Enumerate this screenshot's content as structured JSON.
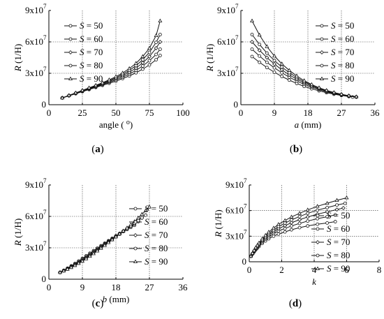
{
  "chart_data": [
    {
      "type": "line",
      "panel_label": "(a)",
      "xlabel": "angle (",
      "xlabel_sup": "o",
      "xlabel_close": ")",
      "xlabel_italic": "",
      "xlabel_unit": "",
      "ylabel": "R (1/H)",
      "xlim": [
        0,
        100
      ],
      "ylim": [
        0,
        90000000
      ],
      "xticks": [
        0,
        25,
        50,
        75,
        100
      ],
      "xtick_labels": [
        "0",
        "25",
        "50",
        "75",
        "100"
      ],
      "yticks": [
        0,
        30000000,
        60000000,
        90000000
      ],
      "ytick_labels": [
        "0",
        "3x10",
        "6x10",
        "9x10"
      ],
      "ytick_exp": [
        "",
        "7",
        "7",
        "7"
      ],
      "grid": true,
      "legend_position": "top-left",
      "series": [
        {
          "name": "S = 50",
          "x": [
            10,
            15,
            20,
            25,
            30,
            35,
            40,
            45,
            50,
            55,
            60,
            65,
            70,
            75,
            80,
            83
          ],
          "y": [
            6500000,
            8500000,
            10500000,
            12500000,
            14500000,
            16500000,
            18500000,
            20500000,
            22500000,
            25000000,
            27500000,
            30500000,
            34000000,
            38000000,
            43000000,
            47000000
          ]
        },
        {
          "name": "S = 60",
          "x": [
            10,
            15,
            20,
            25,
            30,
            35,
            40,
            45,
            50,
            55,
            60,
            65,
            70,
            75,
            80,
            83
          ],
          "y": [
            6500000,
            8600000,
            10700000,
            12800000,
            14900000,
            17000000,
            19200000,
            21400000,
            23700000,
            26300000,
            29300000,
            32800000,
            37000000,
            42000000,
            48000000,
            53000000
          ]
        },
        {
          "name": "S = 70",
          "x": [
            10,
            15,
            20,
            25,
            30,
            35,
            40,
            45,
            50,
            55,
            60,
            65,
            70,
            75,
            80,
            83
          ],
          "y": [
            6500000,
            8700000,
            10900000,
            13100000,
            15300000,
            17500000,
            19800000,
            22200000,
            24800000,
            27700000,
            31000000,
            35000000,
            40000000,
            46000000,
            54000000,
            60000000
          ]
        },
        {
          "name": "S = 80",
          "x": [
            10,
            15,
            20,
            25,
            30,
            35,
            40,
            45,
            50,
            55,
            60,
            65,
            70,
            75,
            80,
            83
          ],
          "y": [
            6500000,
            8800000,
            11100000,
            13400000,
            15700000,
            18000000,
            20400000,
            23000000,
            25800000,
            29000000,
            32800000,
            37300000,
            43000000,
            50000000,
            59500000,
            67000000
          ]
        },
        {
          "name": "S = 90",
          "x": [
            10,
            15,
            20,
            25,
            30,
            35,
            40,
            45,
            50,
            55,
            60,
            65,
            70,
            75,
            80,
            83
          ],
          "y": [
            6500000,
            8900000,
            11300000,
            13700000,
            16100000,
            18500000,
            21000000,
            23800000,
            26800000,
            30300000,
            34500000,
            39500000,
            46000000,
            54000000,
            66000000,
            80000000
          ]
        }
      ]
    },
    {
      "type": "line",
      "panel_label": "(b)",
      "xlabel": "",
      "xlabel_sup": "",
      "xlabel_close": "",
      "xlabel_italic": "a",
      "xlabel_unit": " (mm)",
      "ylabel": "R (1/H)",
      "xlim": [
        0,
        36
      ],
      "ylim": [
        0,
        90000000
      ],
      "xticks": [
        0,
        9,
        18,
        27,
        36
      ],
      "xtick_labels": [
        "0",
        "9",
        "18",
        "27",
        "36"
      ],
      "yticks": [
        0,
        30000000,
        60000000,
        90000000
      ],
      "ytick_labels": [
        "0",
        "3x10",
        "6x10",
        "9x10"
      ],
      "ytick_exp": [
        "",
        "7",
        "7",
        "7"
      ],
      "grid": true,
      "legend_position": "top-right",
      "series": [
        {
          "name": "S = 50",
          "x": [
            3,
            5,
            7,
            9,
            11,
            13,
            15,
            17,
            19,
            21,
            23,
            25,
            27,
            29,
            30
          ],
          "y": [
            46000000,
            40500000,
            35500000,
            31000000,
            27000000,
            23500000,
            20300000,
            17500000,
            15200000,
            13200000,
            11500000,
            10000000,
            8800000,
            7800000,
            7300000
          ]
        },
        {
          "name": "S = 60",
          "x": [
            3,
            5,
            7,
            9,
            11,
            13,
            15,
            17,
            19,
            21,
            23,
            25,
            27,
            29,
            31
          ],
          "y": [
            53000000,
            46500000,
            40500000,
            35200000,
            30500000,
            26300000,
            22600000,
            19400000,
            16700000,
            14300000,
            12300000,
            10700000,
            9300000,
            8200000,
            7300000
          ]
        },
        {
          "name": "S = 70",
          "x": [
            3,
            5,
            7,
            9,
            11,
            13,
            15,
            17,
            19,
            21,
            23,
            25,
            27,
            29,
            31
          ],
          "y": [
            60000000,
            52000000,
            45000000,
            38800000,
            33300000,
            28500000,
            24400000,
            20800000,
            17700000,
            15100000,
            12900000,
            11100000,
            9600000,
            8400000,
            7400000
          ]
        },
        {
          "name": "S = 80",
          "x": [
            3,
            5,
            7,
            9,
            11,
            13,
            15,
            17,
            19,
            21,
            23,
            25,
            27,
            29,
            31
          ],
          "y": [
            67000000,
            57500000,
            49300000,
            42200000,
            36000000,
            30600000,
            26000000,
            22000000,
            18600000,
            15800000,
            13400000,
            11400000,
            9800000,
            8500000,
            7500000
          ]
        },
        {
          "name": "S = 90",
          "x": [
            3,
            5,
            7,
            9,
            11,
            13,
            15,
            17,
            19,
            21,
            23,
            25,
            27,
            29,
            31
          ],
          "y": [
            80000000,
            66500000,
            55500000,
            46500000,
            39000000,
            32800000,
            27500000,
            23000000,
            19300000,
            16200000,
            13700000,
            11700000,
            10000000,
            8600000,
            7600000
          ]
        }
      ]
    },
    {
      "type": "line",
      "panel_label": "(c)",
      "xlabel": "",
      "xlabel_sup": "",
      "xlabel_close": "",
      "xlabel_italic": "b",
      "xlabel_unit": " (mm)",
      "ylabel": "R (1/H)",
      "xlim": [
        0,
        36
      ],
      "ylim": [
        0,
        90000000
      ],
      "xticks": [
        0,
        9,
        18,
        27,
        36
      ],
      "xtick_labels": [
        "0",
        "9",
        "18",
        "27",
        "36"
      ],
      "yticks": [
        0,
        30000000,
        60000000,
        90000000
      ],
      "ytick_labels": [
        "0",
        "3x10",
        "6x10",
        "9x10"
      ],
      "ytick_exp": [
        "",
        "7",
        "7",
        "7"
      ],
      "grid": true,
      "legend_position": "bottom-right",
      "series": [
        {
          "name": "S = 50",
          "x": [
            3,
            4,
            5,
            6,
            7,
            8,
            9,
            10,
            11,
            12,
            13,
            14,
            15,
            16,
            17,
            18,
            19,
            20,
            21,
            22,
            23
          ],
          "y": [
            6500000,
            8500000,
            10500000,
            12700000,
            15000000,
            17400000,
            19800000,
            22300000,
            24800000,
            27200000,
            29600000,
            32000000,
            34400000,
            36700000,
            39000000,
            41300000,
            43500000,
            45500000,
            47500000,
            49500000,
            51500000
          ]
        },
        {
          "name": "S = 60",
          "x": [
            3,
            4,
            5,
            6,
            7,
            8,
            9,
            10,
            11,
            12,
            13,
            14,
            15,
            16,
            17,
            18,
            19,
            20,
            21,
            22,
            23,
            24
          ],
          "y": [
            6500000,
            8300000,
            10200000,
            12200000,
            14300000,
            16600000,
            19000000,
            21400000,
            23900000,
            26300000,
            28800000,
            31300000,
            33800000,
            36300000,
            38800000,
            41300000,
            43700000,
            46000000,
            48300000,
            50500000,
            52700000,
            55000000
          ]
        },
        {
          "name": "S = 70",
          "x": [
            3,
            4,
            5,
            6,
            7,
            8,
            9,
            10,
            11,
            12,
            13,
            14,
            15,
            16,
            17,
            18,
            19,
            20,
            21,
            22,
            23,
            24,
            25
          ],
          "y": [
            6500000,
            8200000,
            10000000,
            11900000,
            13900000,
            16000000,
            18300000,
            20700000,
            23100000,
            25600000,
            28100000,
            30600000,
            33200000,
            35800000,
            38400000,
            41000000,
            43500000,
            46000000,
            48500000,
            51000000,
            53500000,
            56000000,
            58500000
          ]
        },
        {
          "name": "S = 80",
          "x": [
            3,
            4,
            5,
            6,
            7,
            8,
            9,
            10,
            11,
            12,
            13,
            14,
            15,
            16,
            17,
            18,
            19,
            20,
            21,
            22,
            23,
            24,
            25,
            26
          ],
          "y": [
            6500000,
            8000000,
            9700000,
            11500000,
            13400000,
            15500000,
            17700000,
            20000000,
            22400000,
            24900000,
            27400000,
            30000000,
            32600000,
            35200000,
            37800000,
            40400000,
            43000000,
            45600000,
            48200000,
            50800000,
            53400000,
            56000000,
            58600000,
            61200000
          ]
        },
        {
          "name": "S = 90",
          "x": [
            3,
            4,
            5,
            6,
            7,
            8,
            9,
            10,
            11,
            12,
            13,
            14,
            15,
            16,
            17,
            18,
            19,
            20,
            21,
            22,
            23,
            24,
            25,
            26,
            27
          ],
          "y": [
            6500000,
            7900000,
            9500000,
            11200000,
            13100000,
            15100000,
            17200000,
            19500000,
            21900000,
            24400000,
            27000000,
            29600000,
            32300000,
            35000000,
            37700000,
            40500000,
            43300000,
            46100000,
            49000000,
            52000000,
            55000000,
            58500000,
            62000000,
            65500000,
            69000000
          ]
        }
      ]
    },
    {
      "type": "line",
      "panel_label": "(d)",
      "xlabel": "",
      "xlabel_sup": "",
      "xlabel_close": "",
      "xlabel_italic": "k",
      "xlabel_unit": "",
      "ylabel": "R (1/H)",
      "xlim": [
        0,
        8
      ],
      "ylim": [
        0,
        90000000
      ],
      "xticks": [
        0,
        2,
        4,
        6,
        8
      ],
      "xtick_labels": [
        "0",
        "2",
        "4",
        "6",
        "8"
      ],
      "yticks": [
        0,
        30000000,
        60000000,
        90000000
      ],
      "ytick_labels": [
        "0",
        "3x10",
        "6x10",
        "9x10"
      ],
      "ytick_exp": [
        "",
        "7",
        "7",
        "7"
      ],
      "grid": true,
      "legend_position": "bottom-right",
      "series": [
        {
          "name": "S = 50",
          "x": [
            0.1,
            0.2,
            0.3,
            0.4,
            0.5,
            0.6,
            0.8,
            1.0,
            1.2,
            1.5,
            1.8,
            2.2,
            2.6,
            3.1,
            3.6,
            4.2,
            4.8,
            5.3
          ],
          "y": [
            6500000,
            9000000,
            11500000,
            14000000,
            16000000,
            18000000,
            21500000,
            24500000,
            27000000,
            30000000,
            32500000,
            35000000,
            37500000,
            40000000,
            42000000,
            44000000,
            45500000,
            47000000
          ]
        },
        {
          "name": "S = 60",
          "x": [
            0.1,
            0.2,
            0.3,
            0.4,
            0.5,
            0.6,
            0.8,
            1.0,
            1.2,
            1.5,
            1.8,
            2.2,
            2.6,
            3.1,
            3.6,
            4.2,
            4.8,
            5.3
          ],
          "y": [
            6500000,
            9300000,
            12000000,
            14700000,
            17000000,
            19200000,
            23000000,
            26500000,
            29300000,
            33000000,
            36000000,
            39000000,
            42000000,
            45000000,
            47700000,
            50500000,
            52800000,
            55000000
          ]
        },
        {
          "name": "S = 70",
          "x": [
            0.1,
            0.2,
            0.3,
            0.4,
            0.5,
            0.6,
            0.8,
            1.0,
            1.2,
            1.5,
            1.8,
            2.2,
            2.6,
            3.1,
            3.6,
            4.2,
            4.8,
            5.4,
            5.8
          ],
          "y": [
            6500000,
            9500000,
            12400000,
            15300000,
            17800000,
            20200000,
            24400000,
            28000000,
            31300000,
            35300000,
            38800000,
            42300000,
            45800000,
            49300000,
            52500000,
            55800000,
            58500000,
            61200000,
            63000000
          ]
        },
        {
          "name": "S = 80",
          "x": [
            0.1,
            0.2,
            0.3,
            0.4,
            0.5,
            0.6,
            0.8,
            1.0,
            1.2,
            1.5,
            1.8,
            2.2,
            2.6,
            3.1,
            3.6,
            4.2,
            4.8,
            5.4,
            5.9
          ],
          "y": [
            6500000,
            9700000,
            12800000,
            15800000,
            18500000,
            21000000,
            25500000,
            29500000,
            33000000,
            37400000,
            41300000,
            45300000,
            49100000,
            53000000,
            56700000,
            60500000,
            63500000,
            66500000,
            68500000
          ]
        },
        {
          "name": "S = 90",
          "x": [
            0.1,
            0.2,
            0.3,
            0.4,
            0.5,
            0.6,
            0.8,
            1.0,
            1.2,
            1.5,
            1.8,
            2.2,
            2.6,
            3.1,
            3.6,
            4.2,
            4.8,
            5.4,
            6.0
          ],
          "y": [
            6500000,
            9900000,
            13200000,
            16400000,
            19300000,
            22000000,
            26800000,
            31000000,
            34800000,
            39500000,
            43800000,
            48300000,
            52500000,
            56800000,
            60800000,
            65000000,
            68500000,
            72000000,
            75000000
          ]
        }
      ]
    }
  ]
}
